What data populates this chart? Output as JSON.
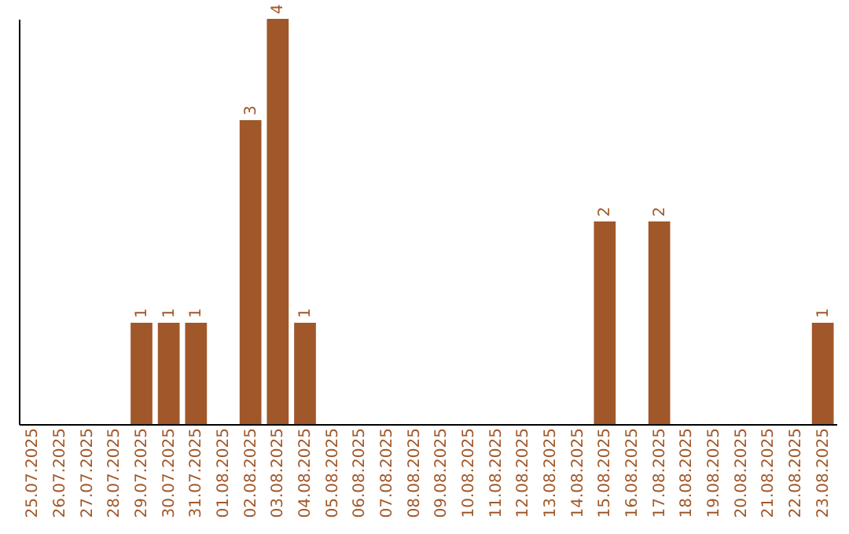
{
  "chart_data": {
    "type": "bar",
    "categories": [
      "25.07.2025",
      "26.07.2025",
      "27.07.2025",
      "28.07.2025",
      "29.07.2025",
      "30.07.2025",
      "31.07.2025",
      "01.08.2025",
      "02.08.2025",
      "03.08.2025",
      "04.08.2025",
      "05.08.2025",
      "06.08.2025",
      "07.08.2025",
      "08.08.2025",
      "09.08.2025",
      "10.08.2025",
      "11.08.2025",
      "12.08.2025",
      "13.08.2025",
      "14.08.2025",
      "15.08.2025",
      "16.08.2025",
      "17.08.2025",
      "18.08.2025",
      "19.08.2025",
      "20.08.2025",
      "21.08.2025",
      "22.08.2025",
      "23.08.2025"
    ],
    "values": [
      0,
      0,
      0,
      0,
      1,
      1,
      1,
      0,
      3,
      4,
      1,
      0,
      0,
      0,
      0,
      0,
      0,
      0,
      0,
      0,
      0,
      2,
      0,
      2,
      0,
      0,
      0,
      0,
      0,
      1
    ],
    "value_labels": [
      null,
      null,
      null,
      null,
      "1",
      "1",
      "1",
      null,
      "3",
      "4",
      "1",
      null,
      null,
      null,
      null,
      null,
      null,
      null,
      null,
      null,
      null,
      "2",
      null,
      "2",
      null,
      null,
      null,
      null,
      null,
      "1"
    ],
    "color": "#a0582a",
    "tick_labels": "x"
  }
}
